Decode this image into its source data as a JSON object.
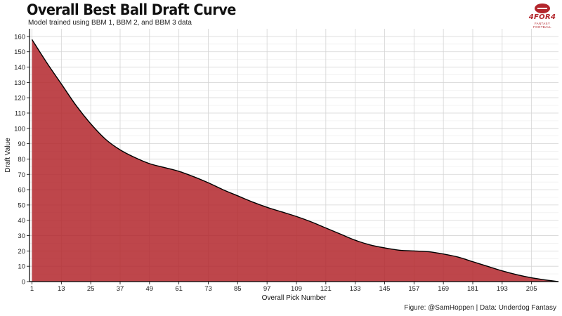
{
  "header": {
    "title": "Overall Best Ball Draft Curve",
    "subtitle": "Model trained using BBM 1, BBM 2, and BBM 3 data"
  },
  "logo": {
    "brand": "4FOR4",
    "tagline": "FANTASY FOOTBALL"
  },
  "caption": "Figure: @SamHoppen | Data: Underdog Fantasy",
  "colors": {
    "fill": "#b3262c",
    "line": "#000000",
    "grid": "#d4d4d4"
  },
  "chart_data": {
    "type": "area",
    "title": "Overall Best Ball Draft Curve",
    "subtitle": "Model trained using BBM 1, BBM 2, and BBM 3 data",
    "xlabel": "Overall Pick Number",
    "ylabel": "Draft Value",
    "xlim": [
      0,
      216
    ],
    "ylim": [
      0,
      165
    ],
    "x_ticks": [
      1,
      13,
      25,
      37,
      49,
      61,
      73,
      85,
      97,
      109,
      121,
      133,
      145,
      157,
      169,
      181,
      193,
      205
    ],
    "y_ticks": [
      0,
      10,
      20,
      30,
      40,
      50,
      60,
      70,
      80,
      90,
      100,
      110,
      120,
      130,
      140,
      150,
      160
    ],
    "grid": true,
    "legend": "none",
    "series": [
      {
        "x": [
          1,
          7,
          13,
          19,
          25,
          31,
          37,
          43,
          49,
          55,
          61,
          67,
          73,
          79,
          85,
          91,
          97,
          103,
          109,
          115,
          121,
          127,
          133,
          139,
          145,
          151,
          157,
          163,
          169,
          175,
          181,
          187,
          193,
          199,
          205,
          211,
          216
        ],
        "y": [
          158,
          143,
          129,
          115,
          103,
          93,
          86,
          81,
          77,
          74.5,
          72,
          68.5,
          64.5,
          60,
          56,
          52,
          48.5,
          45.5,
          42.5,
          39,
          35,
          31,
          27,
          24,
          22,
          20.5,
          20,
          19.5,
          18,
          16,
          13,
          10,
          7,
          4.5,
          2.5,
          1,
          0
        ]
      }
    ]
  }
}
